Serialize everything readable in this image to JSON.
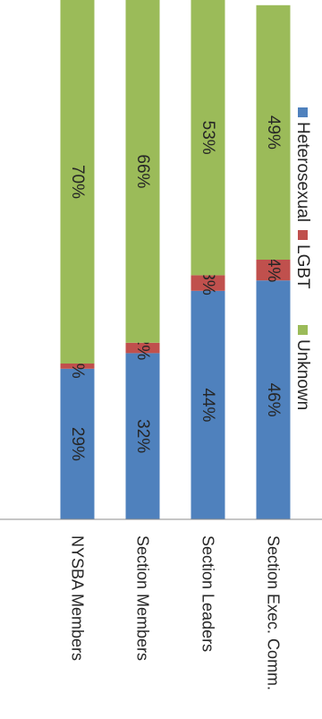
{
  "chart_data": {
    "type": "bar",
    "orientation": "horizontal",
    "stacked": true,
    "percent_stacked": true,
    "rotated": "90deg clockwise",
    "categories": [
      "Section Exec. Comm.",
      "Section Leaders",
      "Section Members",
      "NYSBA Members"
    ],
    "series": [
      {
        "name": "Heterosexual",
        "color": "#4F81BD",
        "values": [
          46,
          44,
          32,
          29
        ],
        "labels": [
          "46%",
          "44%",
          "32%",
          "29%"
        ]
      },
      {
        "name": "LGBT",
        "color": "#C0504D",
        "values": [
          4,
          3,
          2,
          1
        ],
        "labels": [
          "4%",
          "3%",
          "2%",
          "1%"
        ]
      },
      {
        "name": "Unknown",
        "color": "#9BBB59",
        "values": [
          49,
          53,
          66,
          70
        ],
        "labels": [
          "49%",
          "53%",
          "66%",
          "70%"
        ]
      }
    ],
    "xlim": [
      0,
      100
    ],
    "value_axis_labels_shown": false,
    "legend_position": "top",
    "grid": false
  }
}
